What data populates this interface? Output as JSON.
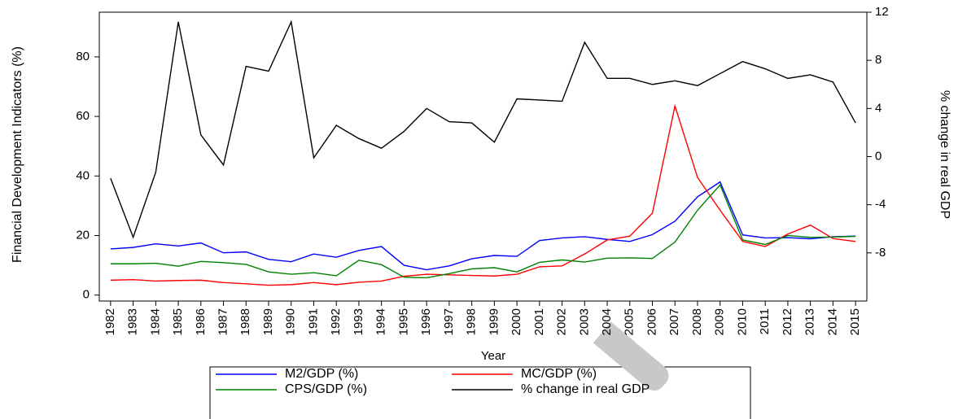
{
  "chart_data": {
    "type": "line",
    "x_label": "Year",
    "y_label": "Financial Development Indicators (%)",
    "y2_label": "% change in real GDP",
    "categories": [
      "1982",
      "1983",
      "1984",
      "1985",
      "1986",
      "1987",
      "1988",
      "1989",
      "1990",
      "1991",
      "1992",
      "1993",
      "1994",
      "1995",
      "1996",
      "1997",
      "1998",
      "1999",
      "2000",
      "2001",
      "2002",
      "2003",
      "2004",
      "2005",
      "2006",
      "2007",
      "2008",
      "2009",
      "2010",
      "2011",
      "2012",
      "2013",
      "2014",
      "2015"
    ],
    "series": [
      {
        "name": "M2/GDP (%)",
        "color": "#0000ff",
        "values": [
          15.5,
          16,
          17.2,
          16.5,
          17.5,
          14.2,
          14.5,
          12,
          11.2,
          13.8,
          12.7,
          15,
          16.3,
          10,
          8.5,
          9.8,
          12.2,
          13.3,
          13,
          18.3,
          19.2,
          19.6,
          18.7,
          18,
          20.3,
          24.8,
          33,
          38,
          20.2,
          19.2,
          19.3,
          18.9,
          19.6,
          19.8
        ]
      },
      {
        "name": "MC/GDP (%)",
        "color": "#ff0000",
        "values": [
          5,
          5.2,
          4.7,
          4.9,
          5,
          4.2,
          3.8,
          3.3,
          3.5,
          4.2,
          3.5,
          4.3,
          4.7,
          6.3,
          7,
          6.8,
          6.6,
          6.4,
          7,
          9.5,
          9.8,
          13.8,
          18.5,
          19.8,
          27.5,
          63.5,
          39.5,
          28.5,
          18,
          16.3,
          20.5,
          23.5,
          19,
          18
        ]
      },
      {
        "name": "CPS/GDP (%)",
        "color": "#008000",
        "values": [
          10.5,
          10.5,
          10.7,
          9.7,
          11.3,
          10.9,
          10.3,
          7.8,
          7,
          7.5,
          6.5,
          11.7,
          10.2,
          6,
          5.8,
          7.2,
          8.8,
          9.2,
          7.8,
          11,
          11.8,
          11.1,
          12.4,
          12.5,
          12.3,
          17.8,
          28.5,
          37,
          18.5,
          17,
          20,
          19.4,
          19.5,
          19.7
        ]
      },
      {
        "name": "% change in real GDP",
        "color": "#000000",
        "axis": "y2",
        "values": [
          -1.8,
          -6.7,
          -1.3,
          11.2,
          1.8,
          -0.7,
          7.5,
          7.1,
          11.2,
          -0.1,
          2.6,
          1.5,
          0.7,
          2.1,
          4,
          2.9,
          2.8,
          1.2,
          4.8,
          4.7,
          4.6,
          9.5,
          6.5,
          6.5,
          6,
          6.3,
          5.9,
          6.9,
          7.9,
          7.3,
          6.5,
          6.8,
          6.2,
          2.8
        ]
      }
    ],
    "ylim": [
      -2,
      95
    ],
    "yticks": [
      0,
      20,
      40,
      60,
      80
    ],
    "y2lim": [
      -12,
      12
    ],
    "y2ticks": [
      -8,
      -4,
      0,
      4,
      8,
      12
    ],
    "legend": "bottom"
  }
}
